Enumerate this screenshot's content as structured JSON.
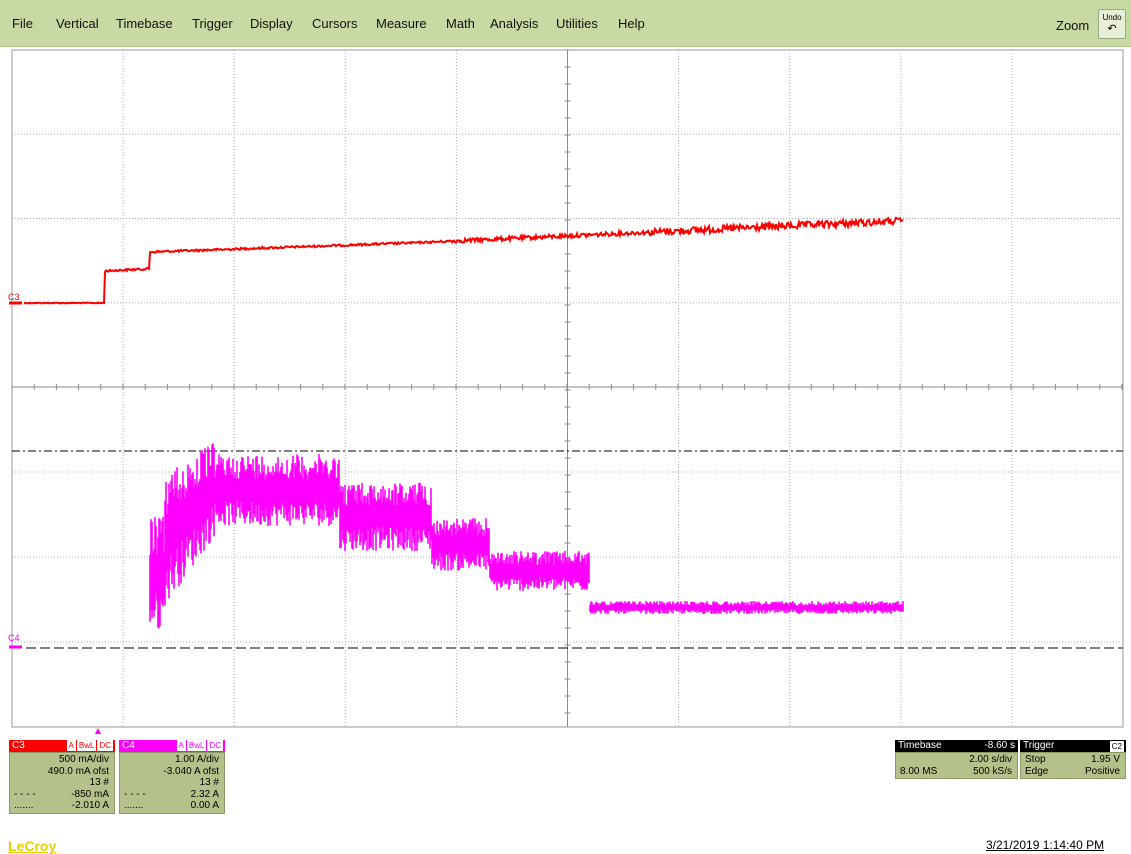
{
  "menu": {
    "items": [
      "File",
      "Vertical",
      "Timebase",
      "Trigger",
      "Display",
      "Cursors",
      "Measure",
      "Math",
      "Analysis",
      "Utilities",
      "Help"
    ],
    "zoom_label": "Zoom",
    "undo_label": "Undo"
  },
  "traces": {
    "c3": {
      "label": "C3",
      "color": "#ff0000"
    },
    "c4": {
      "label": "C4",
      "color": "#ff00ff"
    }
  },
  "channels": {
    "c3": {
      "name": "C3",
      "color": "#ff0000",
      "flags": [
        "A",
        "BwL",
        "DC"
      ],
      "scale": "500 mA/div",
      "offset": "490.0 mA ofst",
      "sweeps": "13 #",
      "cursor1_value": "-850 mA",
      "cursor2_value": "-2.010 A"
    },
    "c4": {
      "name": "C4",
      "color": "#ff00ff",
      "flags": [
        "A",
        "BwL",
        "DC"
      ],
      "scale": "1.00 A/div",
      "offset": "-3.040 A ofst",
      "sweeps": "13 #",
      "cursor1_value": "2.32 A",
      "cursor2_value": "0.00 A"
    }
  },
  "timebase": {
    "label": "Timebase",
    "delay": "-8.60 s",
    "scale": "2.00 s/div",
    "samples": "8.00 MS",
    "rate": "500 kS/s"
  },
  "trigger": {
    "label": "Trigger",
    "source": "C2",
    "mode": "Stop",
    "level": "1.95 V",
    "type": "Edge",
    "slope": "Positive"
  },
  "footer": {
    "logo": "LeCroy",
    "timestamp": "3/21/2019 1:14:40 PM"
  }
}
